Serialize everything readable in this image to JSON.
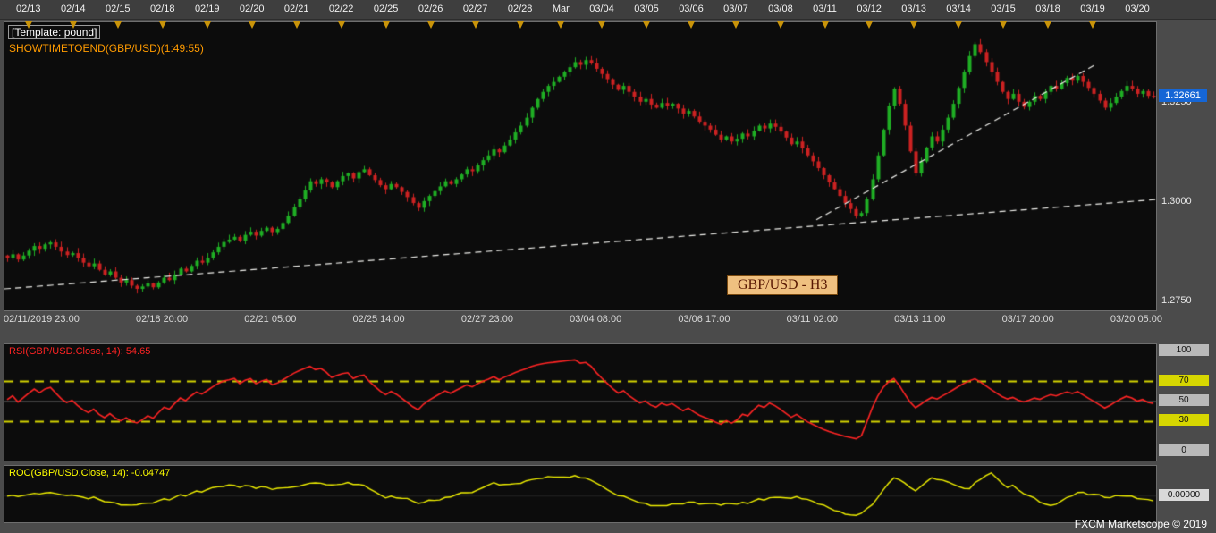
{
  "window": {
    "footer": "FXCM Marketscope © 2019"
  },
  "top_bar": {
    "dates": [
      {
        "label": "02/13",
        "marker": true
      },
      {
        "label": "02/14",
        "marker": true
      },
      {
        "label": "02/15",
        "marker": true
      },
      {
        "label": "02/18",
        "marker": true
      },
      {
        "label": "02/19",
        "marker": true
      },
      {
        "label": "02/20",
        "marker": true
      },
      {
        "label": "02/21",
        "marker": true
      },
      {
        "label": "02/22",
        "marker": true
      },
      {
        "label": "02/25",
        "marker": true
      },
      {
        "label": "02/26",
        "marker": true
      },
      {
        "label": "02/27",
        "marker": true
      },
      {
        "label": "02/28",
        "marker": true
      },
      {
        "label": "Mar",
        "marker": true
      },
      {
        "label": "03/04",
        "marker": true
      },
      {
        "label": "03/05",
        "marker": true
      },
      {
        "label": "03/06",
        "marker": true
      },
      {
        "label": "03/07",
        "marker": true
      },
      {
        "label": "03/08",
        "marker": true
      },
      {
        "label": "03/11",
        "marker": true
      },
      {
        "label": "03/12",
        "marker": true
      },
      {
        "label": "03/13",
        "marker": true
      },
      {
        "label": "03/14",
        "marker": true
      },
      {
        "label": "03/15",
        "marker": true
      },
      {
        "label": "03/18",
        "marker": true
      },
      {
        "label": "03/19",
        "marker": true
      },
      {
        "label": "03/20",
        "marker": false
      }
    ]
  },
  "overlay": {
    "template_label": "[Template: pound]",
    "showtime_label": "SHOWTIMETOEND(GBP/USD)(1:49:55)",
    "symbol_label": "GBP/USD - H3"
  },
  "price_axis": {
    "ticks": [
      "1.3250",
      "1.3000",
      "1.2750"
    ],
    "last_price": "1.32661"
  },
  "time_axis": {
    "labels": [
      "02/11/2019 23:00",
      "02/18 20:00",
      "02/21 05:00",
      "02/25 14:00",
      "02/27 23:00",
      "03/04 08:00",
      "03/06 17:00",
      "03/11 02:00",
      "03/13 11:00",
      "03/17 20:00",
      "03/20 05:00"
    ]
  },
  "rsi_panel": {
    "label": "RSI(GBP/USD.Close, 14): 54.65",
    "last_value": 54.65,
    "axis_ticks": [
      100,
      70,
      50,
      30,
      0
    ],
    "yellow_ticks": [
      70,
      30
    ]
  },
  "roc_panel": {
    "label": "ROC(GBP/USD.Close, 14): -0.04747",
    "last_value": -0.04747,
    "axis_tick": "0.00000"
  },
  "colors": {
    "up": "#1fae24",
    "down": "#cc2222",
    "trendline": "#f0f0ec",
    "marker": "#c9940a",
    "price_badge_bg": "#1566d6",
    "rsi_line": "#ff2424",
    "rsi_level": "#d6d600",
    "roc_line": "#f0f000"
  },
  "chart_data": [
    {
      "type": "candlestick",
      "title": "GBP/USD - H3",
      "symbol": "GBP/USD",
      "timeframe": "H3",
      "y_ticks": [
        1.325,
        1.3,
        1.275
      ],
      "y_range": [
        1.273,
        1.3455
      ],
      "x_tick_labels": [
        "02/11/2019 23:00",
        "02/18 20:00",
        "02/21 05:00",
        "02/25 14:00",
        "02/27 23:00",
        "03/04 08:00",
        "03/06 17:00",
        "03/11 02:00",
        "03/13 11:00",
        "03/17 20:00",
        "03/20 05:00"
      ],
      "last_price": 1.32661,
      "closes": [
        1.2862,
        1.2871,
        1.2858,
        1.2868,
        1.288,
        1.2892,
        1.2885,
        1.2896,
        1.2901,
        1.289,
        1.2878,
        1.2869,
        1.2874,
        1.2862,
        1.285,
        1.2841,
        1.2848,
        1.2832,
        1.282,
        1.2828,
        1.2812,
        1.28,
        1.2806,
        1.2792,
        1.2784,
        1.279,
        1.2798,
        1.2788,
        1.28,
        1.2812,
        1.2806,
        1.282,
        1.2835,
        1.2828,
        1.2842,
        1.2855,
        1.285,
        1.2862,
        1.2876,
        1.289,
        1.2902,
        1.2908,
        1.2915,
        1.2905,
        1.292,
        1.2928,
        1.2918,
        1.293,
        1.2938,
        1.2927,
        1.2935,
        1.295,
        1.2968,
        1.299,
        1.301,
        1.3032,
        1.3055,
        1.3048,
        1.306,
        1.3052,
        1.304,
        1.3055,
        1.3068,
        1.3075,
        1.3062,
        1.3078,
        1.3085,
        1.307,
        1.3058,
        1.3045,
        1.3035,
        1.3048,
        1.304,
        1.3028,
        1.3015,
        1.3,
        1.2988,
        1.3005,
        1.3018,
        1.303,
        1.3042,
        1.3055,
        1.3048,
        1.306,
        1.3072,
        1.3085,
        1.308,
        1.3095,
        1.3108,
        1.312,
        1.3135,
        1.3128,
        1.3145,
        1.316,
        1.3178,
        1.3195,
        1.3215,
        1.324,
        1.3262,
        1.328,
        1.3295,
        1.3305,
        1.3318,
        1.333,
        1.3342,
        1.3355,
        1.3348,
        1.336,
        1.3352,
        1.3338,
        1.3325,
        1.3312,
        1.3298,
        1.3285,
        1.3295,
        1.328,
        1.3268,
        1.3255,
        1.3262,
        1.3248,
        1.324,
        1.3252,
        1.3245,
        1.325,
        1.3238,
        1.3225,
        1.3232,
        1.3218,
        1.3205,
        1.3195,
        1.3185,
        1.3172,
        1.316,
        1.3168,
        1.3155,
        1.3162,
        1.3175,
        1.3168,
        1.3182,
        1.3195,
        1.3188,
        1.32,
        1.3192,
        1.318,
        1.3165,
        1.3148,
        1.3155,
        1.3138,
        1.312,
        1.3105,
        1.3088,
        1.307,
        1.3052,
        1.3035,
        1.3018,
        1.3,
        1.2985,
        1.2968,
        1.2975,
        1.301,
        1.306,
        1.312,
        1.3185,
        1.3245,
        1.3288,
        1.325,
        1.3195,
        1.313,
        1.3075,
        1.3105,
        1.314,
        1.3168,
        1.3155,
        1.3185,
        1.3215,
        1.325,
        1.329,
        1.333,
        1.337,
        1.34,
        1.338,
        1.3355,
        1.333,
        1.3305,
        1.328,
        1.3262,
        1.3275,
        1.3255,
        1.3242,
        1.3255,
        1.327,
        1.3262,
        1.328,
        1.3295,
        1.3288,
        1.3302,
        1.3315,
        1.3308,
        1.332,
        1.3305,
        1.329,
        1.3275,
        1.3258,
        1.324,
        1.3252,
        1.3268,
        1.3282,
        1.3295,
        1.3288,
        1.3275,
        1.3282,
        1.327,
        1.32661
      ],
      "trendlines": [
        {
          "x1": 0.0,
          "p1": 1.2784,
          "x2": 1.0,
          "p2": 1.3009
        },
        {
          "x1": 0.705,
          "p1": 1.2958,
          "x2": 0.947,
          "p2": 1.3348
        }
      ]
    },
    {
      "type": "line",
      "name": "RSI(14)",
      "params": {
        "period": 14,
        "source": "GBP/USD.Close"
      },
      "last_value": 54.65,
      "levels": [
        70,
        50,
        30
      ],
      "range": [
        0,
        100
      ],
      "derived_from": "chart_data[0].closes"
    },
    {
      "type": "line",
      "name": "ROC(14)",
      "params": {
        "period": 14,
        "source": "GBP/USD.Close"
      },
      "last_value": -0.04747,
      "zero_level": 0,
      "derived_from": "chart_data[0].closes"
    }
  ]
}
